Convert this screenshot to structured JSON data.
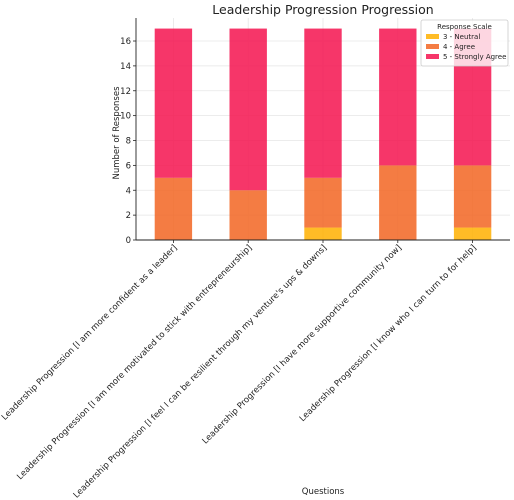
{
  "chart_data": {
    "type": "bar",
    "stacked": true,
    "title": "Leadership Progression Progression",
    "xlabel": "Questions",
    "ylabel": "Number of Responses",
    "ylim": [
      0,
      17.85
    ],
    "yticks": [
      0,
      2,
      4,
      6,
      8,
      10,
      12,
      14,
      16
    ],
    "grid": true,
    "legend_title": "Response Scale",
    "legend_position": "top-right",
    "categories": [
      "Leadership Progression [I am more confident as a leader]",
      "Leadership Progression [I am more motivated to stick with entrepreneurship]",
      "Leadership Progression [I feel I can be resilient through my venture's ups & downs]",
      "Leadership Progression [I have more supportive community now]",
      "Leadership Progression [I know who I can turn to for help]"
    ],
    "series": [
      {
        "name": "3 - Neutral",
        "color": "#FFB000",
        "values": [
          0,
          0,
          1,
          0,
          1
        ]
      },
      {
        "name": "4 - Agree",
        "color": "#F26522",
        "values": [
          5,
          4,
          4,
          6,
          5
        ]
      },
      {
        "name": "5 - Strongly Agree",
        "color": "#F5134F",
        "values": [
          12,
          13,
          12,
          11,
          11
        ]
      }
    ]
  }
}
